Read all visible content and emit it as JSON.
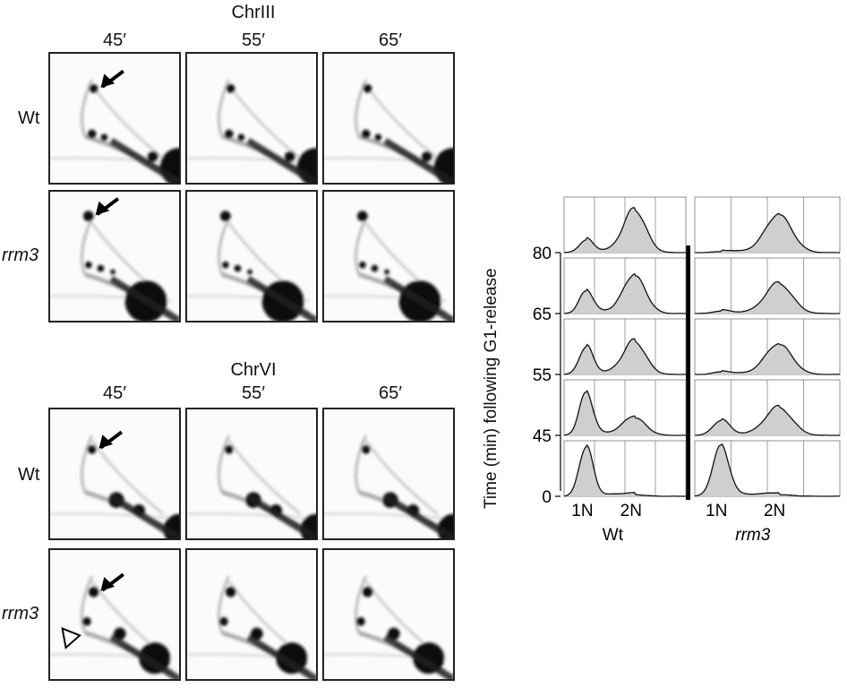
{
  "gels": {
    "chr3": {
      "title": "ChrIII"
    },
    "chr6": {
      "title": "ChrVI"
    },
    "timepoints": [
      "45′",
      "55′",
      "65′"
    ],
    "strains": [
      "Wt",
      "rrm3"
    ]
  },
  "chart_data": {
    "type": "area",
    "ylabel": "Time (min) following G1-release",
    "y_ticks": [
      "80",
      "65",
      "55",
      "45",
      "0"
    ],
    "x_ticks": [
      "1N",
      "2N"
    ],
    "panels": [
      {
        "name": "Wt",
        "rows": [
          {
            "time": 80,
            "peak_1N": 0.25,
            "peak_2N": 0.85
          },
          {
            "time": 65,
            "peak_1N": 0.45,
            "peak_2N": 0.75
          },
          {
            "time": 55,
            "peak_1N": 0.55,
            "peak_2N": 0.65
          },
          {
            "time": 45,
            "peak_1N": 0.85,
            "peak_2N": 0.35
          },
          {
            "time": 0,
            "peak_1N": 1.0,
            "peak_2N": 0.03
          }
        ]
      },
      {
        "name": "rrm3",
        "rows": [
          {
            "time": 80,
            "peak_1N": 0.02,
            "peak_2N": 0.75
          },
          {
            "time": 65,
            "peak_1N": 0.05,
            "peak_2N": 0.6
          },
          {
            "time": 55,
            "peak_1N": 0.05,
            "peak_2N": 0.6
          },
          {
            "time": 45,
            "peak_1N": 0.3,
            "peak_2N": 0.55
          },
          {
            "time": 0,
            "peak_1N": 1.0,
            "peak_2N": 0.03
          }
        ]
      }
    ]
  }
}
